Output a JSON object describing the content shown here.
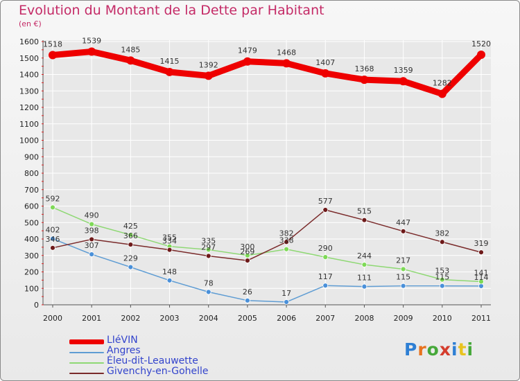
{
  "header": {
    "title": "Evolution du Montant de la Dette par Habitant",
    "unit": "(en €)"
  },
  "logo": {
    "text": "Proxiti",
    "letter_colors": [
      "#2e7fd4",
      "#e8731f",
      "#46a83a",
      "#d43c2c",
      "#2e7fd4",
      "#e8c31f",
      "#46a83a"
    ]
  },
  "colors": {
    "title": "#c42a66",
    "legend_text": "#3344cc",
    "grid": "#ffffff",
    "axis_text": "#222222",
    "value_text": "#333333"
  },
  "chart_data": {
    "type": "line",
    "x": [
      "2000",
      "2001",
      "2002",
      "2003",
      "2004",
      "2005",
      "2006",
      "2007",
      "2008",
      "2009",
      "2010",
      "2011"
    ],
    "ylim": [
      0,
      1600
    ],
    "yticks": [
      0,
      100,
      200,
      300,
      400,
      500,
      600,
      700,
      800,
      900,
      1000,
      1100,
      1200,
      1300,
      1400,
      1500,
      1600
    ],
    "grid": true,
    "legend_position": "bottom-left",
    "series": [
      {
        "name": "LIéVIN",
        "color": "#ee0000",
        "point_color": "#ee0000",
        "thick": true,
        "values": [
          1518,
          1539,
          1485,
          1415,
          1392,
          1479,
          1468,
          1407,
          1368,
          1359,
          1282,
          1520
        ]
      },
      {
        "name": "Angres",
        "color": "#5e9cd3",
        "point_color": "#4a90d9",
        "thick": false,
        "values": [
          402,
          307,
          229,
          148,
          78,
          26,
          17,
          117,
          111,
          115,
          115,
          114
        ]
      },
      {
        "name": "Éleu-dit-Leauwette",
        "color": "#8ed873",
        "point_color": "#7ed957",
        "thick": false,
        "values": [
          592,
          490,
          425,
          355,
          335,
          300,
          338,
          290,
          244,
          217,
          153,
          141
        ]
      },
      {
        "name": "Givenchy-en-Gohelle",
        "color": "#7a2a2a",
        "point_color": "#6e1a1a",
        "thick": false,
        "values": [
          346,
          398,
          366,
          334,
          297,
          269,
          382,
          577,
          515,
          447,
          382,
          319
        ]
      }
    ]
  }
}
